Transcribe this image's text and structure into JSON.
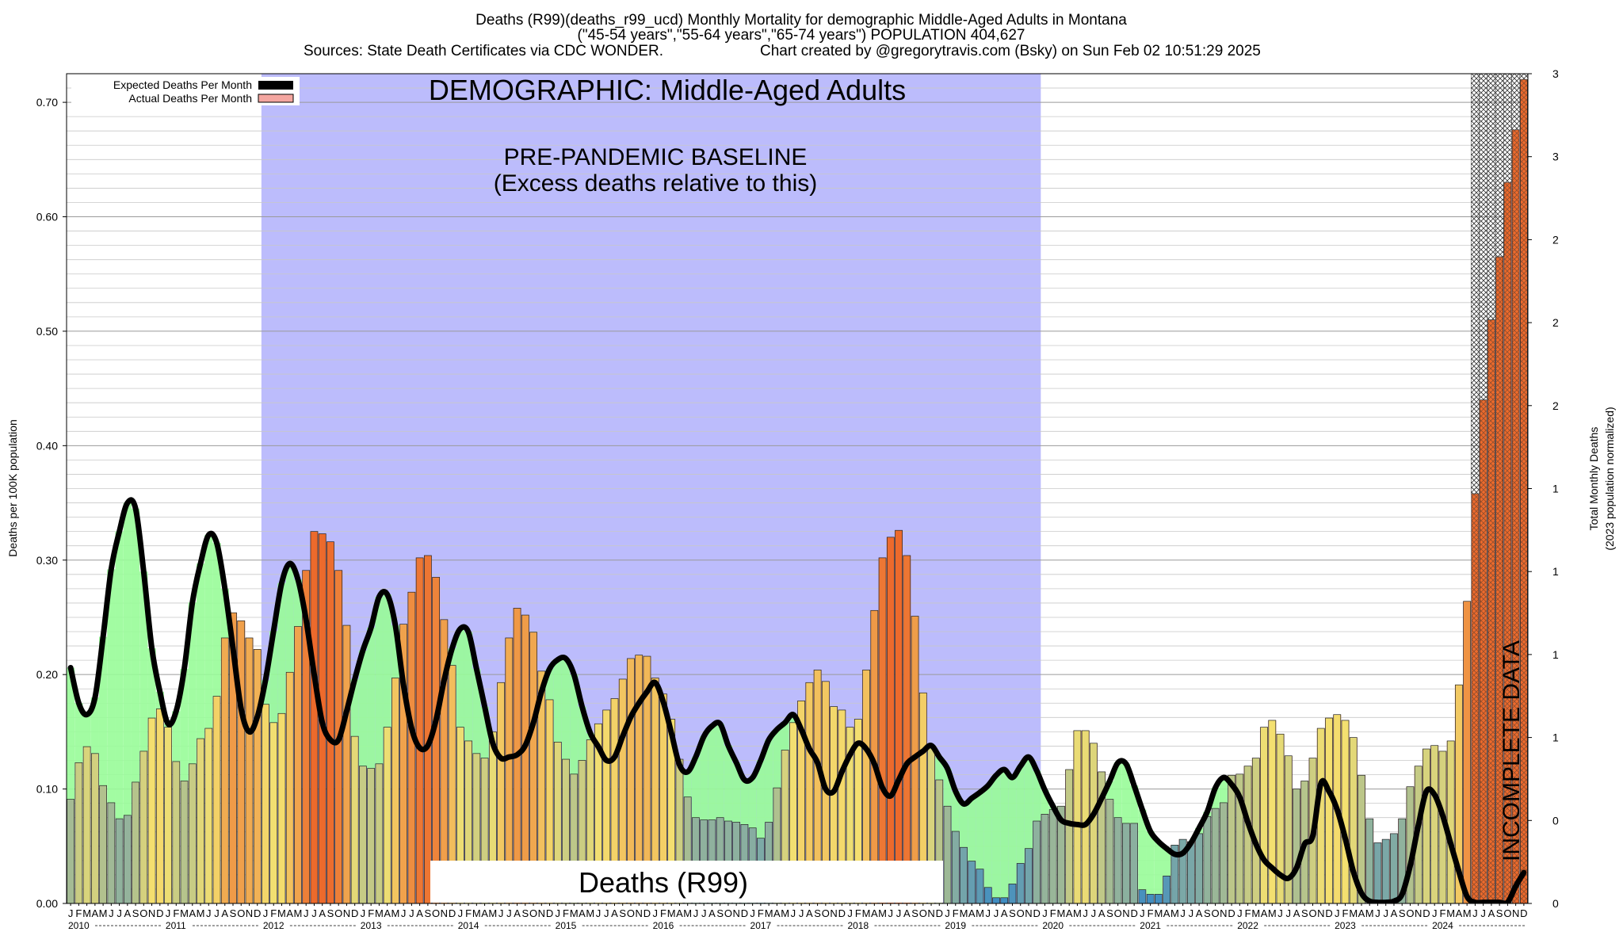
{
  "header": {
    "line1": "Deaths (R99)(deaths_r99_ucd) Monthly Mortality for demographic Middle-Aged Adults in Montana",
    "line2": "(\"45-54 years\",\"55-64 years\",\"65-74 years\") POPULATION 404,627",
    "line3_left": "Sources: State Death Certificates via CDC WONDER.",
    "line3_right": "Chart created by @gregorytravis.com (Bsky) on Sun Feb 02 10:51:29 2025"
  },
  "annotations": {
    "demographic": "DEMOGRAPHIC: Middle-Aged Adults",
    "baseline_1": "PRE-PANDEMIC BASELINE",
    "baseline_2": "(Excess deaths relative to this)",
    "cause_box": "Deaths (R99)",
    "incomplete": "INCOMPLETE DATA"
  },
  "legend": {
    "expected": "Expected Deaths Per Month",
    "actual": "Actual Deaths Per Month"
  },
  "colors": {
    "baseline_band": "#bcbcfc",
    "expected_line": "#000000",
    "deficit_fill": "#98fc98",
    "excess_fill": "#f4a6a0",
    "bar_low": "#3a8ac4",
    "bar_mid": "#f4e070",
    "bar_high": "#ec6a2c"
  },
  "chart_data": {
    "type": "bar",
    "ylabel": "Deaths per 100K population",
    "y2label_1": "Total Monthly Deaths",
    "y2label_2": "(2023 population normalized)",
    "ylim": [
      0,
      0.725
    ],
    "y_ticks": [
      "0.00",
      "0.10",
      "0.20",
      "0.30",
      "0.40",
      "0.50",
      "0.60",
      "0.70"
    ],
    "y2_ticks": [
      "0",
      "0",
      "1",
      "1",
      "1",
      "1",
      "2",
      "2",
      "2",
      "3",
      "3"
    ],
    "month_letters": [
      "J",
      "F",
      "M",
      "A",
      "M",
      "J",
      "J",
      "A",
      "S",
      "O",
      "N",
      "D"
    ],
    "years": [
      "2010",
      "2011",
      "2012",
      "2013",
      "2014",
      "2015",
      "2016",
      "2017",
      "2018",
      "2019",
      "2020",
      "2021",
      "2022",
      "2023",
      "2024"
    ],
    "baseline_period": [
      "2012-01",
      "2019-12"
    ],
    "incomplete_from": "2024-07",
    "grid": true,
    "legend_position": "top-left",
    "series": [
      {
        "name": "Actual Deaths Per Month",
        "start": "2010-01",
        "values": [
          0.091,
          0.123,
          0.137,
          0.131,
          0.103,
          0.088,
          0.074,
          0.077,
          0.106,
          0.133,
          0.162,
          0.17,
          0.154,
          0.124,
          0.107,
          0.122,
          0.144,
          0.153,
          0.181,
          0.232,
          0.254,
          0.247,
          0.232,
          0.222,
          0.174,
          0.158,
          0.166,
          0.202,
          0.242,
          0.291,
          0.325,
          0.323,
          0.316,
          0.291,
          0.243,
          0.146,
          0.12,
          0.118,
          0.122,
          0.154,
          0.197,
          0.244,
          0.272,
          0.302,
          0.304,
          0.285,
          0.248,
          0.208,
          0.154,
          0.142,
          0.131,
          0.127,
          0.15,
          0.193,
          0.232,
          0.258,
          0.252,
          0.237,
          0.203,
          0.178,
          0.141,
          0.126,
          0.113,
          0.125,
          0.143,
          0.157,
          0.169,
          0.179,
          0.196,
          0.214,
          0.217,
          0.216,
          0.197,
          0.183,
          0.161,
          0.126,
          0.093,
          0.075,
          0.073,
          0.073,
          0.075,
          0.072,
          0.071,
          0.069,
          0.066,
          0.057,
          0.071,
          0.101,
          0.134,
          0.158,
          0.177,
          0.193,
          0.204,
          0.194,
          0.172,
          0.169,
          0.154,
          0.161,
          0.204,
          0.256,
          0.302,
          0.32,
          0.326,
          0.304,
          0.251,
          0.184,
          0.136,
          0.108,
          0.085,
          0.063,
          0.049,
          0.037,
          0.03,
          0.014,
          0.005,
          0.005,
          0.017,
          0.035,
          0.048,
          0.072,
          0.078,
          0.082,
          0.085,
          0.117,
          0.151,
          0.151,
          0.14,
          0.115,
          0.091,
          0.075,
          0.07,
          0.07,
          0.012,
          0.008,
          0.008,
          0.024,
          0.051,
          0.056,
          0.054,
          0.061,
          0.076,
          0.083,
          0.088,
          0.112,
          0.113,
          0.12,
          0.127,
          0.154,
          0.16,
          0.148,
          0.129,
          0.1,
          0.107,
          0.127,
          0.153,
          0.162,
          0.165,
          0.16,
          0.145,
          0.112,
          0.074,
          0.053,
          0.056,
          0.061,
          0.074,
          0.102,
          0.12,
          0.135,
          0.138,
          0.133,
          0.142,
          0.191,
          0.264,
          0.358,
          0.44,
          0.51,
          0.565,
          0.63,
          0.676,
          0.72
        ]
      },
      {
        "name": "Expected Deaths Per Month",
        "points": [
          [
            "2010-01",
            0.206
          ],
          [
            "2010-02",
            0.175
          ],
          [
            "2010-03",
            0.165
          ],
          [
            "2010-04",
            0.18
          ],
          [
            "2010-05",
            0.233
          ],
          [
            "2010-06",
            0.292
          ],
          [
            "2010-07",
            0.325
          ],
          [
            "2010-08",
            0.35
          ],
          [
            "2010-09",
            0.345
          ],
          [
            "2010-10",
            0.29
          ],
          [
            "2010-11",
            0.223
          ],
          [
            "2010-12",
            0.185
          ],
          [
            "2011-01",
            0.157
          ],
          [
            "2011-02",
            0.168
          ],
          [
            "2011-03",
            0.205
          ],
          [
            "2011-04",
            0.263
          ],
          [
            "2011-05",
            0.297
          ],
          [
            "2011-06",
            0.322
          ],
          [
            "2011-07",
            0.315
          ],
          [
            "2011-08",
            0.275
          ],
          [
            "2011-09",
            0.223
          ],
          [
            "2011-10",
            0.17
          ],
          [
            "2011-11",
            0.15
          ],
          [
            "2011-12",
            0.163
          ],
          [
            "2012-01",
            0.195
          ],
          [
            "2012-02",
            0.238
          ],
          [
            "2012-03",
            0.28
          ],
          [
            "2012-04",
            0.297
          ],
          [
            "2012-05",
            0.283
          ],
          [
            "2012-06",
            0.248
          ],
          [
            "2012-07",
            0.2
          ],
          [
            "2012-08",
            0.158
          ],
          [
            "2012-09",
            0.143
          ],
          [
            "2012-10",
            0.143
          ],
          [
            "2012-11",
            0.168
          ],
          [
            "2012-12",
            0.196
          ],
          [
            "2013-01",
            0.221
          ],
          [
            "2013-02",
            0.241
          ],
          [
            "2013-03",
            0.268
          ],
          [
            "2013-04",
            0.27
          ],
          [
            "2013-05",
            0.243
          ],
          [
            "2013-06",
            0.191
          ],
          [
            "2013-07",
            0.153
          ],
          [
            "2013-08",
            0.136
          ],
          [
            "2013-09",
            0.138
          ],
          [
            "2013-10",
            0.16
          ],
          [
            "2013-11",
            0.195
          ],
          [
            "2013-12",
            0.223
          ],
          [
            "2014-01",
            0.24
          ],
          [
            "2014-02",
            0.237
          ],
          [
            "2014-03",
            0.205
          ],
          [
            "2014-04",
            0.172
          ],
          [
            "2014-05",
            0.14
          ],
          [
            "2014-06",
            0.127
          ],
          [
            "2014-07",
            0.128
          ],
          [
            "2014-08",
            0.13
          ],
          [
            "2014-09",
            0.138
          ],
          [
            "2014-10",
            0.158
          ],
          [
            "2014-11",
            0.185
          ],
          [
            "2014-12",
            0.205
          ],
          [
            "2015-01",
            0.213
          ],
          [
            "2015-02",
            0.214
          ],
          [
            "2015-03",
            0.2
          ],
          [
            "2015-04",
            0.172
          ],
          [
            "2015-05",
            0.149
          ],
          [
            "2015-06",
            0.137
          ],
          [
            "2015-07",
            0.125
          ],
          [
            "2015-08",
            0.128
          ],
          [
            "2015-09",
            0.146
          ],
          [
            "2015-10",
            0.163
          ],
          [
            "2015-11",
            0.175
          ],
          [
            "2015-12",
            0.185
          ],
          [
            "2016-01",
            0.193
          ],
          [
            "2016-02",
            0.176
          ],
          [
            "2016-03",
            0.149
          ],
          [
            "2016-04",
            0.121
          ],
          [
            "2016-05",
            0.115
          ],
          [
            "2016-06",
            0.128
          ],
          [
            "2016-07",
            0.146
          ],
          [
            "2016-08",
            0.155
          ],
          [
            "2016-09",
            0.157
          ],
          [
            "2016-10",
            0.138
          ],
          [
            "2016-11",
            0.123
          ],
          [
            "2016-12",
            0.108
          ],
          [
            "2017-01",
            0.11
          ],
          [
            "2017-02",
            0.125
          ],
          [
            "2017-03",
            0.143
          ],
          [
            "2017-04",
            0.152
          ],
          [
            "2017-05",
            0.158
          ],
          [
            "2017-06",
            0.165
          ],
          [
            "2017-07",
            0.152
          ],
          [
            "2017-08",
            0.135
          ],
          [
            "2017-09",
            0.123
          ],
          [
            "2017-10",
            0.1
          ],
          [
            "2017-11",
            0.098
          ],
          [
            "2017-12",
            0.115
          ],
          [
            "2018-01",
            0.13
          ],
          [
            "2018-02",
            0.14
          ],
          [
            "2018-03",
            0.135
          ],
          [
            "2018-04",
            0.122
          ],
          [
            "2018-05",
            0.101
          ],
          [
            "2018-06",
            0.094
          ],
          [
            "2018-07",
            0.108
          ],
          [
            "2018-08",
            0.122
          ],
          [
            "2018-09",
            0.128
          ],
          [
            "2018-10",
            0.133
          ],
          [
            "2018-11",
            0.138
          ],
          [
            "2018-12",
            0.128
          ],
          [
            "2019-01",
            0.118
          ],
          [
            "2019-02",
            0.098
          ],
          [
            "2019-03",
            0.087
          ],
          [
            "2019-04",
            0.092
          ],
          [
            "2019-05",
            0.097
          ],
          [
            "2019-06",
            0.103
          ],
          [
            "2019-07",
            0.112
          ],
          [
            "2019-08",
            0.117
          ],
          [
            "2019-09",
            0.11
          ],
          [
            "2019-10",
            0.12
          ],
          [
            "2019-11",
            0.128
          ],
          [
            "2019-12",
            0.116
          ],
          [
            "2020-01",
            0.099
          ],
          [
            "2020-02",
            0.085
          ],
          [
            "2020-03",
            0.073
          ],
          [
            "2020-04",
            0.07
          ],
          [
            "2020-05",
            0.069
          ],
          [
            "2020-06",
            0.069
          ],
          [
            "2020-07",
            0.078
          ],
          [
            "2020-08",
            0.092
          ],
          [
            "2020-09",
            0.107
          ],
          [
            "2020-10",
            0.123
          ],
          [
            "2020-11",
            0.122
          ],
          [
            "2020-12",
            0.103
          ],
          [
            "2021-01",
            0.082
          ],
          [
            "2021-02",
            0.063
          ],
          [
            "2021-03",
            0.054
          ],
          [
            "2021-04",
            0.048
          ],
          [
            "2021-05",
            0.043
          ],
          [
            "2021-06",
            0.044
          ],
          [
            "2021-07",
            0.053
          ],
          [
            "2021-08",
            0.066
          ],
          [
            "2021-09",
            0.08
          ],
          [
            "2021-10",
            0.101
          ],
          [
            "2021-11",
            0.11
          ],
          [
            "2021-12",
            0.104
          ],
          [
            "2022-01",
            0.093
          ],
          [
            "2022-02",
            0.071
          ],
          [
            "2022-03",
            0.052
          ],
          [
            "2022-04",
            0.038
          ],
          [
            "2022-05",
            0.031
          ],
          [
            "2022-06",
            0.025
          ],
          [
            "2022-07",
            0.022
          ],
          [
            "2022-08",
            0.031
          ],
          [
            "2022-09",
            0.052
          ],
          [
            "2022-10",
            0.059
          ],
          [
            "2022-11",
            0.105
          ],
          [
            "2022-12",
            0.098
          ],
          [
            "2023-01",
            0.082
          ],
          [
            "2023-02",
            0.057
          ],
          [
            "2023-03",
            0.028
          ],
          [
            "2023-04",
            0.009
          ],
          [
            "2023-05",
            0.002
          ],
          [
            "2023-06",
            0.001
          ],
          [
            "2023-07",
            0.001
          ],
          [
            "2023-08",
            0.002
          ],
          [
            "2023-09",
            0.008
          ],
          [
            "2023-10",
            0.033
          ],
          [
            "2023-11",
            0.068
          ],
          [
            "2023-12",
            0.098
          ],
          [
            "2024-01",
            0.095
          ],
          [
            "2024-02",
            0.077
          ],
          [
            "2024-03",
            0.052
          ],
          [
            "2024-04",
            0.028
          ],
          [
            "2024-05",
            0.006
          ],
          [
            "2024-06",
            0.001
          ],
          [
            "2024-07",
            0.001
          ],
          [
            "2024-08",
            0.001
          ],
          [
            "2024-09",
            0.001
          ],
          [
            "2024-10",
            0.001
          ],
          [
            "2024-11",
            0.015
          ],
          [
            "2024-12",
            0.027
          ]
        ]
      }
    ]
  }
}
